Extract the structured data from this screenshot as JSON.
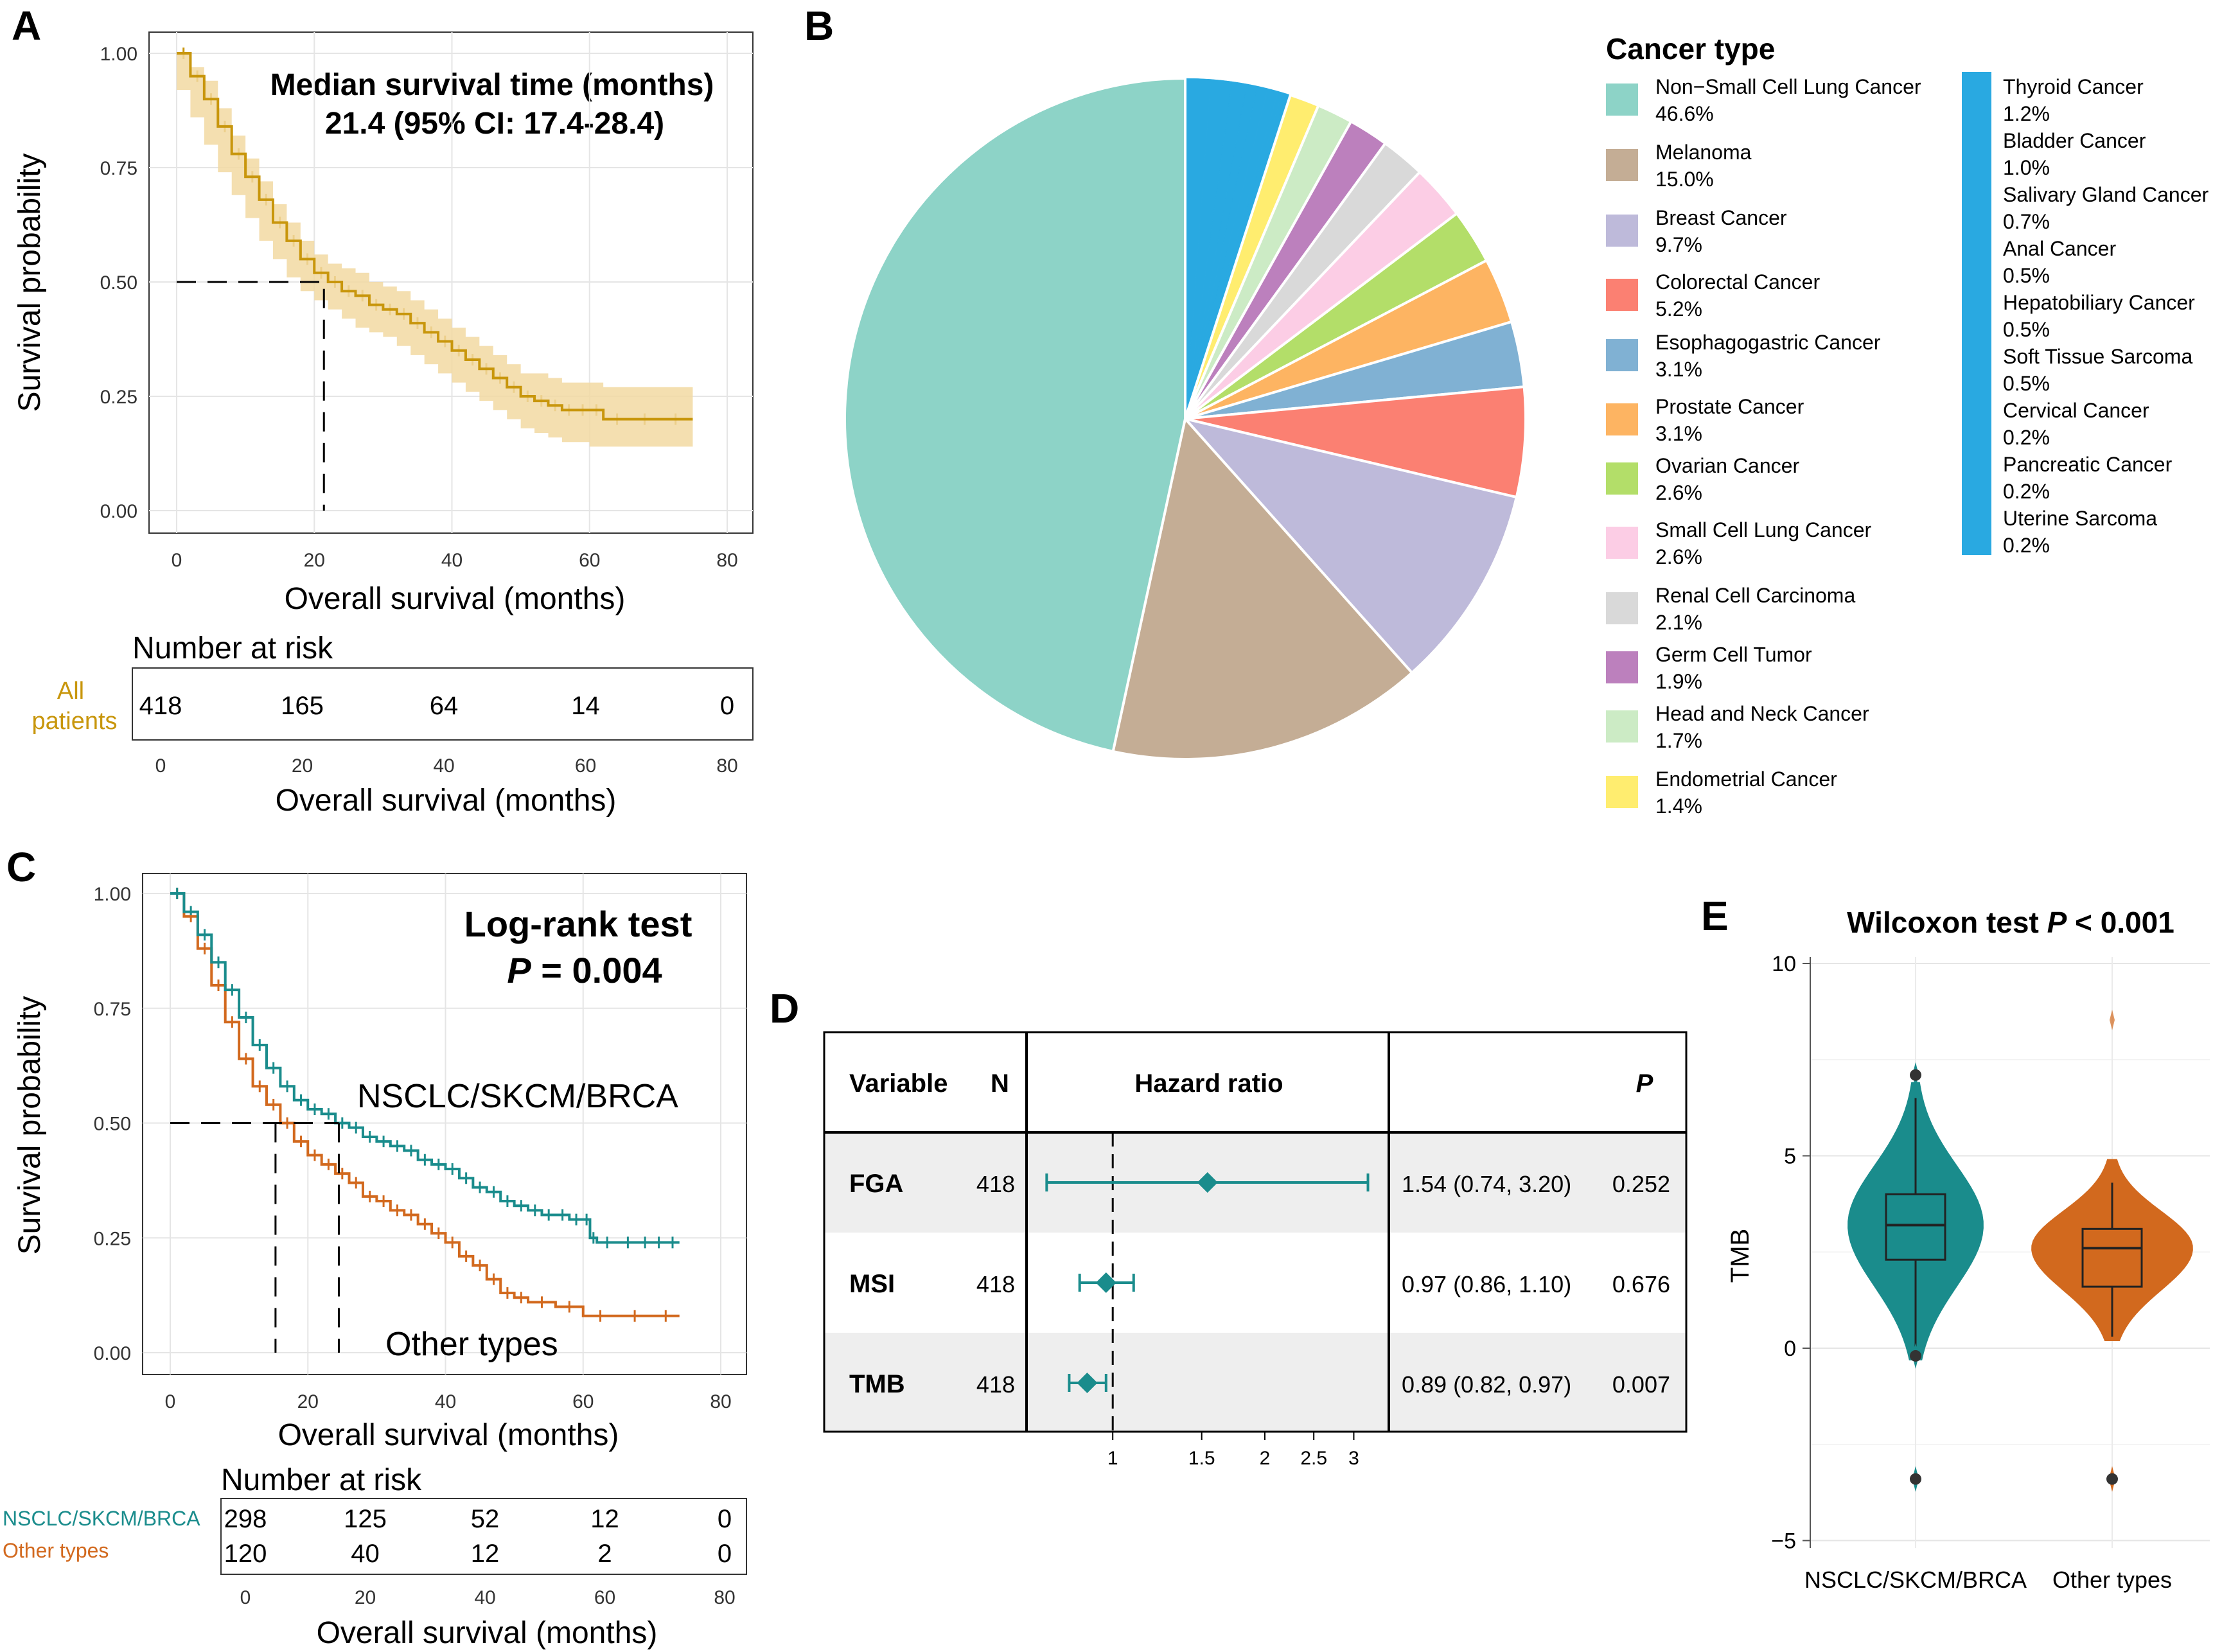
{
  "panels": {
    "A": {
      "label": "A",
      "ylabel": "Survival probability",
      "xlabel": "Overall survival (months)",
      "annotation_line1": "Median survival time (months)",
      "annotation_line2": "21.4 (95% CI: 17.4-28.4)",
      "yticks": [
        "0.00",
        "0.25",
        "0.50",
        "0.75",
        "1.00"
      ],
      "xticks": [
        "0",
        "20",
        "40",
        "60",
        "80"
      ],
      "risk_title": "Number at risk",
      "risk_group_line1": "All",
      "risk_group_line2": "patients",
      "risk_values": [
        "418",
        "165",
        "64",
        "14",
        "0"
      ],
      "risk_xticks": [
        "0",
        "20",
        "40",
        "60",
        "80"
      ],
      "risk_xlabel": "Overall survival (months)"
    },
    "B": {
      "label": "B",
      "legend_title": "Cancer type"
    },
    "C": {
      "label": "C",
      "ylabel": "Survival probability",
      "xlabel": "Overall survival (months)",
      "test_title": "Log-rank test",
      "p_label": "P",
      "p_value": " = 0.004",
      "group1_label": "NSCLC/SKCM/BRCA",
      "group2_label": "Other types",
      "yticks": [
        "0.00",
        "0.25",
        "0.50",
        "0.75",
        "1.00"
      ],
      "xticks": [
        "0",
        "20",
        "40",
        "60",
        "80"
      ],
      "risk_title": "Number at risk",
      "risk_group1": "NSCLC/SKCM/BRCA",
      "risk_group2": "Other types",
      "risk_values1": [
        "298",
        "125",
        "52",
        "12",
        "0"
      ],
      "risk_values2": [
        "120",
        "40",
        "12",
        "2",
        "0"
      ],
      "risk_xticks": [
        "0",
        "20",
        "40",
        "60",
        "80"
      ],
      "risk_xlabel": "Overall survival (months)"
    },
    "D": {
      "label": "D",
      "col_variable": "Variable",
      "col_n": "N",
      "col_hr": "Hazard ratio",
      "col_p": "P",
      "rows": [
        {
          "variable": "FGA",
          "n": "418",
          "hr_text": "1.54 (0.74, 3.20)",
          "p": "0.252"
        },
        {
          "variable": "MSI",
          "n": "418",
          "hr_text": "0.97 (0.86, 1.10)",
          "p": "0.676"
        },
        {
          "variable": "TMB",
          "n": "418",
          "hr_text": "0.89 (0.82, 0.97)",
          "p": "0.007"
        }
      ],
      "xticks": [
        "1",
        "1.5",
        "2",
        "2.5",
        "3"
      ]
    },
    "E": {
      "label": "E",
      "title_prefix": "Wilcoxon test ",
      "title_p": "P",
      "title_suffix": " < 0.001",
      "ylabel": "TMB",
      "yticks": [
        "−5",
        "0",
        "5",
        "10"
      ],
      "groups": [
        "NSCLC/SKCM/BRCA",
        "Other types"
      ]
    }
  },
  "colors": {
    "panel_a_curve": "#C8960C",
    "panel_a_ci": "#F2D9A2",
    "group_teal": "#1A8C8C",
    "group_orange": "#D2691E",
    "grid": "#EBEBEB"
  },
  "chart_data": [
    {
      "type": "line",
      "panel": "A",
      "title": "Median survival time (months) 21.4 (95% CI: 17.4-28.4)",
      "xlabel": "Overall survival (months)",
      "ylabel": "Survival probability",
      "xlim": [
        0,
        80
      ],
      "ylim": [
        0,
        1
      ],
      "median_survival": 21.4,
      "ci": [
        17.4,
        28.4
      ],
      "series": [
        {
          "name": "All patients",
          "x": [
            0,
            2,
            4,
            6,
            8,
            10,
            12,
            14,
            16,
            18,
            20,
            22,
            24,
            26,
            28,
            30,
            32,
            34,
            36,
            38,
            40,
            42,
            44,
            46,
            48,
            50,
            52,
            54,
            56,
            58,
            60,
            62,
            66,
            70,
            75
          ],
          "y": [
            1.0,
            0.95,
            0.9,
            0.84,
            0.78,
            0.73,
            0.68,
            0.63,
            0.59,
            0.55,
            0.52,
            0.5,
            0.48,
            0.47,
            0.45,
            0.44,
            0.43,
            0.41,
            0.39,
            0.37,
            0.35,
            0.33,
            0.31,
            0.29,
            0.27,
            0.25,
            0.24,
            0.23,
            0.22,
            0.22,
            0.22,
            0.2,
            0.2,
            0.2,
            0.2
          ],
          "lower": [
            1.0,
            0.92,
            0.86,
            0.8,
            0.74,
            0.69,
            0.64,
            0.59,
            0.55,
            0.51,
            0.48,
            0.46,
            0.44,
            0.42,
            0.4,
            0.39,
            0.38,
            0.36,
            0.34,
            0.32,
            0.3,
            0.28,
            0.26,
            0.24,
            0.22,
            0.2,
            0.18,
            0.17,
            0.16,
            0.15,
            0.15,
            0.14,
            0.14,
            0.14,
            0.14
          ],
          "upper": [
            1.0,
            0.97,
            0.94,
            0.88,
            0.82,
            0.77,
            0.72,
            0.67,
            0.63,
            0.59,
            0.56,
            0.54,
            0.53,
            0.52,
            0.5,
            0.49,
            0.48,
            0.46,
            0.44,
            0.42,
            0.4,
            0.38,
            0.36,
            0.34,
            0.32,
            0.3,
            0.3,
            0.29,
            0.28,
            0.28,
            0.28,
            0.27,
            0.27,
            0.27,
            0.27
          ]
        }
      ]
    },
    {
      "type": "pie",
      "panel": "B",
      "legend_title": "Cancer type",
      "categories": [
        "Non−Small Cell Lung Cancer",
        "Melanoma",
        "Breast Cancer",
        "Colorectal Cancer",
        "Esophagogastric Cancer",
        "Prostate Cancer",
        "Ovarian Cancer",
        "Small Cell Lung Cancer",
        "Renal Cell Carcinoma",
        "Germ Cell Tumor",
        "Head and Neck Cancer",
        "Endometrial Cancer",
        "Thyroid Cancer",
        "Bladder Cancer",
        "Salivary Gland Cancer",
        "Anal Cancer",
        "Hepatobiliary Cancer",
        "Soft Tissue Sarcoma",
        "Cervical Cancer",
        "Pancreatic Cancer",
        "Uterine Sarcoma"
      ],
      "values": [
        46.6,
        15.0,
        9.7,
        5.2,
        3.1,
        3.1,
        2.6,
        2.6,
        2.1,
        1.9,
        1.7,
        1.4,
        1.2,
        1.0,
        0.7,
        0.5,
        0.5,
        0.5,
        0.2,
        0.2,
        0.2
      ],
      "labels": [
        "46.6%",
        "15.0%",
        "9.7%",
        "5.2%",
        "3.1%",
        "3.1%",
        "2.6%",
        "2.6%",
        "2.1%",
        "1.9%",
        "1.7%",
        "1.4%",
        "1.2%",
        "1.0%",
        "0.7%",
        "0.5%",
        "0.5%",
        "0.5%",
        "0.2%",
        "0.2%",
        "0.2%"
      ],
      "colors": [
        "#8DD3C7",
        "#C4AD95",
        "#BEBADA",
        "#FB8072",
        "#80B1D3",
        "#FDB462",
        "#B3DE69",
        "#FCCDE5",
        "#D9D9D9",
        "#BC80BD",
        "#CCEBC5",
        "#FFED6F",
        "#29A9E1",
        "#29A9E1",
        "#29A9E1",
        "#29A9E1",
        "#29A9E1",
        "#29A9E1",
        "#29A9E1",
        "#29A9E1",
        "#29A9E1"
      ]
    },
    {
      "type": "line",
      "panel": "C",
      "title": "Log-rank test P = 0.004",
      "xlabel": "Overall survival (months)",
      "ylabel": "Survival probability",
      "xlim": [
        0,
        80
      ],
      "ylim": [
        0,
        1
      ],
      "medians": {
        "NSCLC/SKCM/BRCA": 24.5,
        "Other types": 15.3
      },
      "series": [
        {
          "name": "NSCLC/SKCM/BRCA",
          "x": [
            0,
            2,
            4,
            6,
            8,
            10,
            12,
            14,
            16,
            18,
            20,
            22,
            24,
            26,
            28,
            30,
            32,
            34,
            36,
            38,
            40,
            42,
            44,
            46,
            48,
            50,
            52,
            54,
            56,
            58,
            60,
            61,
            62,
            65,
            68,
            70,
            72,
            74
          ],
          "y": [
            1.0,
            0.96,
            0.91,
            0.85,
            0.79,
            0.73,
            0.67,
            0.62,
            0.58,
            0.55,
            0.53,
            0.52,
            0.5,
            0.49,
            0.47,
            0.46,
            0.45,
            0.44,
            0.42,
            0.41,
            0.4,
            0.38,
            0.36,
            0.35,
            0.33,
            0.32,
            0.31,
            0.3,
            0.3,
            0.29,
            0.29,
            0.25,
            0.24,
            0.24,
            0.24,
            0.24,
            0.24,
            0.24
          ]
        },
        {
          "name": "Other types",
          "x": [
            0,
            2,
            4,
            6,
            8,
            10,
            12,
            14,
            16,
            18,
            20,
            22,
            24,
            26,
            28,
            30,
            32,
            34,
            36,
            38,
            40,
            42,
            44,
            46,
            48,
            50,
            52,
            56,
            60,
            65,
            70,
            74
          ],
          "y": [
            1.0,
            0.95,
            0.88,
            0.8,
            0.72,
            0.64,
            0.58,
            0.54,
            0.5,
            0.46,
            0.43,
            0.41,
            0.39,
            0.37,
            0.34,
            0.33,
            0.31,
            0.3,
            0.28,
            0.26,
            0.24,
            0.21,
            0.19,
            0.16,
            0.13,
            0.12,
            0.11,
            0.1,
            0.08,
            0.08,
            0.08,
            0.08
          ]
        }
      ]
    },
    {
      "type": "table",
      "panel": "D",
      "columns": [
        "Variable",
        "N",
        "Hazard ratio",
        "P"
      ],
      "xscale": "log",
      "xlim": [
        0.72,
        3.3
      ],
      "reference_line": 1,
      "rows": [
        {
          "variable": "FGA",
          "n": 418,
          "hr": 1.54,
          "lower": 0.74,
          "upper": 3.2,
          "p": 0.252
        },
        {
          "variable": "MSI",
          "n": 418,
          "hr": 0.97,
          "lower": 0.86,
          "upper": 1.1,
          "p": 0.676
        },
        {
          "variable": "TMB",
          "n": 418,
          "hr": 0.89,
          "lower": 0.82,
          "upper": 0.97,
          "p": 0.007
        }
      ]
    },
    {
      "type": "violin",
      "panel": "E",
      "title": "Wilcoxon test P < 0.001",
      "ylabel": "TMB",
      "ylim": [
        -5,
        10
      ],
      "groups": [
        {
          "name": "NSCLC/SKCM/BRCA",
          "color": "#1A8C8C",
          "min": 0.0,
          "q1": 2.3,
          "median": 3.2,
          "q3": 4.0,
          "max": 6.5,
          "outliers": [
            7.1,
            -0.2,
            -3.4
          ],
          "violin_low": -0.3,
          "violin_high": 6.9
        },
        {
          "name": "Other types",
          "color": "#D2691E",
          "min": 0.3,
          "q1": 1.6,
          "median": 2.6,
          "q3": 3.1,
          "max": 4.3,
          "outliers": [
            -3.4
          ],
          "violin_low": 0.2,
          "violin_high": 4.9
        }
      ]
    }
  ]
}
